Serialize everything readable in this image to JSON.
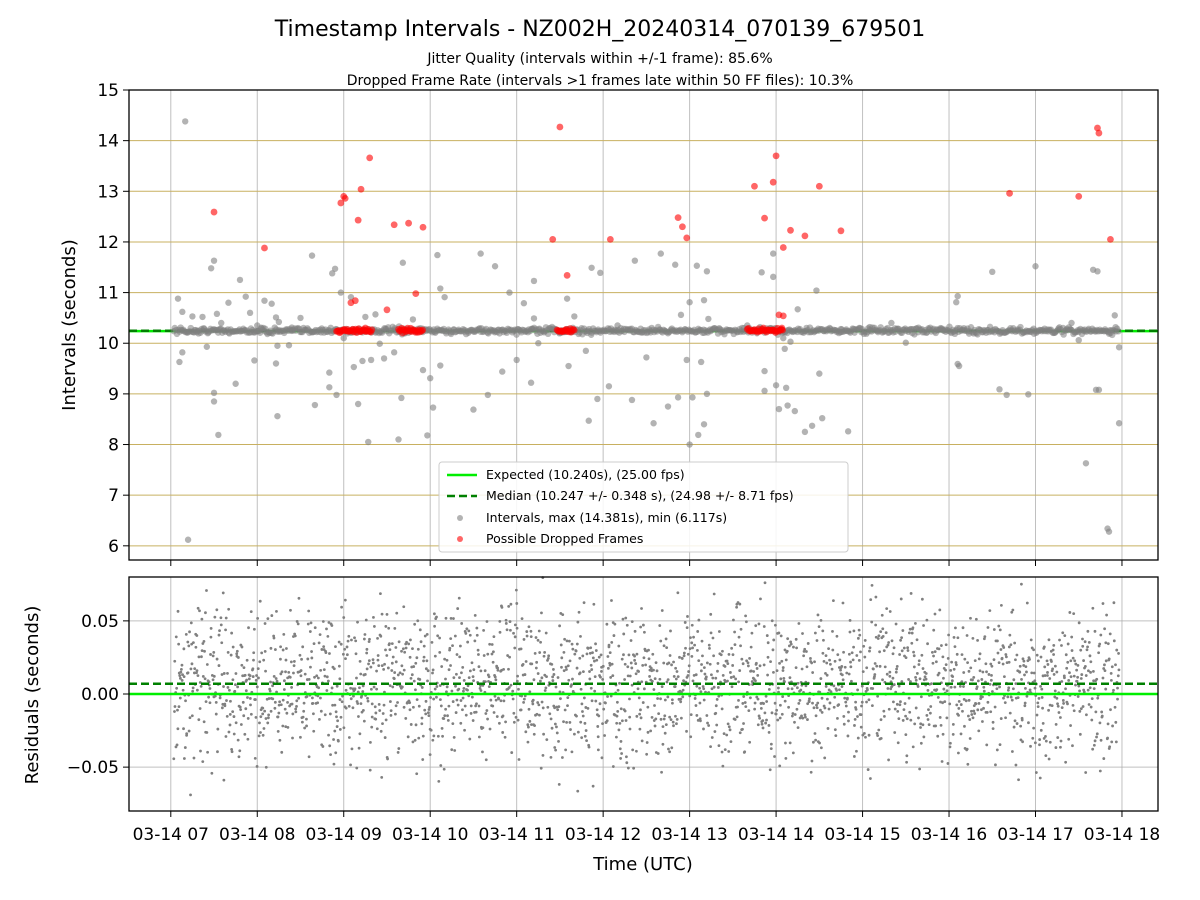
{
  "title": "Timestamp Intervals - NZ002H_20240314_070139_679501",
  "subtitle_lines": [
    "Jitter Quality (intervals within +/-1 frame): 85.6%",
    "Dropped Frame Rate (intervals >1 frames late within 50 FF files): 10.3%"
  ],
  "colors": {
    "expected": "#00ee00",
    "median": "#008000",
    "intervals": "#808080",
    "dropped": "#ff0000",
    "grid_top": "#c8b060",
    "grid": "#b0b0b0"
  },
  "legend": {
    "placement": "lower-center",
    "entries": [
      {
        "label": "Expected (10.240s), (25.00 fps)",
        "style": "solid-line",
        "color": "#00ee00"
      },
      {
        "label": "Median (10.247 +/- 0.348 s), (24.98 +/- 8.71 fps)",
        "style": "dashed-line",
        "color": "#008000"
      },
      {
        "label": "Intervals, max (14.381s), min (6.117s)",
        "style": "marker",
        "color": "#808080"
      },
      {
        "label": "Possible Dropped Frames",
        "style": "marker",
        "color": "#ff0000"
      }
    ]
  },
  "chart_data": [
    {
      "type": "scatter",
      "ylabel": "Intervals (seconds)",
      "xlim": [
        "03-14 06:31",
        "03-14 18:25"
      ],
      "ylim": [
        5.72,
        15.0
      ],
      "yticks": [
        6,
        7,
        8,
        9,
        10,
        11,
        12,
        13,
        14,
        15
      ],
      "grid": "on",
      "expected_line": 10.24,
      "median_line": 10.247,
      "series": [
        {
          "name": "Intervals, max (14.381s), min (6.117s)",
          "points": [
            [
              "07:05",
              10.88
            ],
            [
              "07:08",
              10.62
            ],
            [
              "07:10",
              14.38
            ],
            [
              "07:12",
              6.12
            ],
            [
              "07:08",
              9.82
            ],
            [
              "07:06",
              9.63
            ],
            [
              "07:15",
              10.53
            ],
            [
              "07:18",
              10.22
            ],
            [
              "07:22",
              10.52
            ],
            [
              "07:25",
              9.93
            ],
            [
              "07:28",
              11.48
            ],
            [
              "07:30",
              11.63
            ],
            [
              "07:32",
              10.58
            ],
            [
              "07:35",
              10.4
            ],
            [
              "07:30",
              9.02
            ],
            [
              "07:30",
              8.85
            ],
            [
              "07:33",
              8.19
            ],
            [
              "07:40",
              10.8
            ],
            [
              "07:45",
              9.2
            ],
            [
              "07:48",
              11.25
            ],
            [
              "07:52",
              10.92
            ],
            [
              "07:55",
              10.6
            ],
            [
              "07:58",
              9.66
            ],
            [
              "08:00",
              10.35
            ],
            [
              "08:03",
              10.29
            ],
            [
              "08:05",
              10.84
            ],
            [
              "08:10",
              10.78
            ],
            [
              "08:13",
              10.51
            ],
            [
              "08:13",
              9.6
            ],
            [
              "08:14",
              9.95
            ],
            [
              "08:14",
              8.56
            ],
            [
              "08:15",
              10.42
            ],
            [
              "08:22",
              9.96
            ],
            [
              "08:24",
              10.31
            ],
            [
              "08:30",
              10.5
            ],
            [
              "08:38",
              11.73
            ],
            [
              "08:40",
              8.78
            ],
            [
              "08:50",
              9.42
            ],
            [
              "08:50",
              9.13
            ],
            [
              "08:52",
              11.38
            ],
            [
              "08:54",
              11.47
            ],
            [
              "08:55",
              8.98
            ],
            [
              "08:58",
              11.0
            ],
            [
              "09:00",
              10.1
            ],
            [
              "09:05",
              10.91
            ],
            [
              "09:07",
              9.53
            ],
            [
              "09:10",
              8.8
            ],
            [
              "09:13",
              9.65
            ],
            [
              "09:15",
              10.52
            ],
            [
              "09:17",
              8.05
            ],
            [
              "09:19",
              9.67
            ],
            [
              "09:22",
              10.57
            ],
            [
              "09:25",
              9.99
            ],
            [
              "09:28",
              9.7
            ],
            [
              "09:35",
              9.82
            ],
            [
              "09:38",
              8.1
            ],
            [
              "09:40",
              8.92
            ],
            [
              "09:41",
              11.59
            ],
            [
              "09:48",
              10.47
            ],
            [
              "09:55",
              9.47
            ],
            [
              "09:58",
              8.18
            ],
            [
              "10:00",
              9.31
            ],
            [
              "10:02",
              8.73
            ],
            [
              "10:05",
              11.74
            ],
            [
              "10:07",
              11.08
            ],
            [
              "10:10",
              10.91
            ],
            [
              "10:07",
              9.56
            ],
            [
              "10:30",
              8.69
            ],
            [
              "10:35",
              11.77
            ],
            [
              "10:40",
              8.98
            ],
            [
              "10:45",
              11.52
            ],
            [
              "10:50",
              9.44
            ],
            [
              "10:55",
              11.0
            ],
            [
              "11:00",
              9.67
            ],
            [
              "11:05",
              10.79
            ],
            [
              "11:10",
              9.22
            ],
            [
              "11:12",
              11.23
            ],
            [
              "11:12",
              10.49
            ],
            [
              "11:15",
              10.0
            ],
            [
              "11:35",
              10.88
            ],
            [
              "11:36",
              9.55
            ],
            [
              "11:40",
              10.53
            ],
            [
              "11:48",
              9.85
            ],
            [
              "11:50",
              8.47
            ],
            [
              "11:52",
              11.49
            ],
            [
              "11:56",
              8.9
            ],
            [
              "11:58",
              11.39
            ],
            [
              "12:04",
              9.15
            ],
            [
              "12:10",
              10.35
            ],
            [
              "12:20",
              8.88
            ],
            [
              "12:22",
              11.63
            ],
            [
              "12:30",
              9.72
            ],
            [
              "12:35",
              8.42
            ],
            [
              "12:40",
              11.77
            ],
            [
              "12:45",
              8.75
            ],
            [
              "12:50",
              11.55
            ],
            [
              "12:52",
              8.93
            ],
            [
              "12:54",
              10.56
            ],
            [
              "12:58",
              9.67
            ],
            [
              "13:00",
              10.81
            ],
            [
              "13:00",
              8.0
            ],
            [
              "13:02",
              8.93
            ],
            [
              "13:05",
              11.53
            ],
            [
              "13:06",
              8.19
            ],
            [
              "13:08",
              9.63
            ],
            [
              "13:10",
              10.85
            ],
            [
              "13:10",
              8.4
            ],
            [
              "13:12",
              11.42
            ],
            [
              "13:12",
              9.0
            ],
            [
              "13:13",
              10.48
            ],
            [
              "13:40",
              10.35
            ],
            [
              "13:50",
              11.4
            ],
            [
              "13:52",
              9.45
            ],
            [
              "13:52",
              9.06
            ],
            [
              "13:58",
              11.77
            ],
            [
              "13:58",
              11.31
            ],
            [
              "14:00",
              9.17
            ],
            [
              "14:02",
              8.7
            ],
            [
              "14:05",
              10.1
            ],
            [
              "14:06",
              9.89
            ],
            [
              "14:07",
              9.12
            ],
            [
              "14:08",
              8.77
            ],
            [
              "14:10",
              10.03
            ],
            [
              "14:13",
              8.66
            ],
            [
              "14:15",
              10.67
            ],
            [
              "14:20",
              8.25
            ],
            [
              "14:25",
              8.37
            ],
            [
              "14:28",
              11.04
            ],
            [
              "14:30",
              9.4
            ],
            [
              "14:32",
              8.52
            ],
            [
              "14:45",
              10.28
            ],
            [
              "14:50",
              8.26
            ],
            [
              "15:05",
              10.32
            ],
            [
              "15:20",
              10.4
            ],
            [
              "15:30",
              10.01
            ],
            [
              "15:55",
              10.29
            ],
            [
              "16:05",
              10.81
            ],
            [
              "16:06",
              10.93
            ],
            [
              "16:06",
              9.59
            ],
            [
              "16:07",
              9.55
            ],
            [
              "16:30",
              11.41
            ],
            [
              "16:35",
              9.09
            ],
            [
              "16:40",
              8.98
            ],
            [
              "16:55",
              8.99
            ],
            [
              "17:00",
              11.52
            ],
            [
              "17:25",
              10.4
            ],
            [
              "17:30",
              10.06
            ],
            [
              "17:35",
              7.63
            ],
            [
              "17:40",
              11.45
            ],
            [
              "17:42",
              9.08
            ],
            [
              "17:43",
              11.42
            ],
            [
              "17:44",
              9.08
            ],
            [
              "17:50",
              6.34
            ],
            [
              "17:51",
              6.28
            ],
            [
              "17:52",
              10.2
            ],
            [
              "17:55",
              10.55
            ],
            [
              "17:58",
              9.92
            ],
            [
              "17:58",
              8.42
            ]
          ]
        },
        {
          "name": "Possible Dropped Frames",
          "points": [
            [
              "07:30",
              12.59
            ],
            [
              "08:05",
              11.88
            ],
            [
              "08:58",
              12.77
            ],
            [
              "09:00",
              12.9
            ],
            [
              "09:01",
              12.86
            ],
            [
              "09:05",
              10.8
            ],
            [
              "09:08",
              10.84
            ],
            [
              "09:10",
              12.43
            ],
            [
              "09:12",
              13.04
            ],
            [
              "09:15",
              10.3
            ],
            [
              "09:18",
              13.66
            ],
            [
              "09:30",
              10.66
            ],
            [
              "09:35",
              12.34
            ],
            [
              "09:45",
              12.37
            ],
            [
              "09:50",
              10.98
            ],
            [
              "09:55",
              12.29
            ],
            [
              "11:25",
              12.05
            ],
            [
              "11:30",
              14.27
            ],
            [
              "11:35",
              11.34
            ],
            [
              "12:05",
              12.05
            ],
            [
              "12:52",
              12.48
            ],
            [
              "12:55",
              12.3
            ],
            [
              "12:58",
              12.08
            ],
            [
              "13:45",
              13.1
            ],
            [
              "13:52",
              12.47
            ],
            [
              "13:58",
              13.18
            ],
            [
              "14:00",
              13.7
            ],
            [
              "14:02",
              10.56
            ],
            [
              "14:04",
              10.3
            ],
            [
              "14:05",
              10.54
            ],
            [
              "14:05",
              11.89
            ],
            [
              "14:10",
              12.23
            ],
            [
              "14:20",
              12.12
            ],
            [
              "14:30",
              13.1
            ],
            [
              "14:45",
              12.22
            ],
            [
              "16:42",
              12.96
            ],
            [
              "17:30",
              12.9
            ],
            [
              "17:43",
              14.25
            ],
            [
              "17:44",
              14.15
            ],
            [
              "17:52",
              12.05
            ]
          ],
          "clusters_at_10_25": [
            [
              "08:55",
              "09:20"
            ],
            [
              "09:38",
              "09:55"
            ],
            [
              "11:28",
              "11:40"
            ],
            [
              "13:40",
              "14:05"
            ]
          ]
        }
      ]
    },
    {
      "type": "scatter",
      "ylabel": "Residuals (seconds)",
      "xlabel": "Time (UTC)",
      "xlim": [
        "03-14 06:31",
        "03-14 18:25"
      ],
      "ylim": [
        -0.08,
        0.08
      ],
      "yticks": [
        -0.05,
        0.0,
        0.05
      ],
      "ytick_labels": [
        "−0.05",
        "0.00",
        "0.05"
      ],
      "xtick_labels": [
        "03-14 07",
        "03-14 08",
        "03-14 09",
        "03-14 10",
        "03-14 11",
        "03-14 12",
        "03-14 13",
        "03-14 14",
        "03-14 15",
        "03-14 16",
        "03-14 17",
        "03-14 18"
      ],
      "grid": "on",
      "expected_line": 0.0,
      "median_line": 0.007,
      "residuals": {
        "time_start": "07:02",
        "time_end": "17:58",
        "count": 2400,
        "center": 0.007,
        "spread": 0.025,
        "color": "#808080"
      }
    }
  ]
}
